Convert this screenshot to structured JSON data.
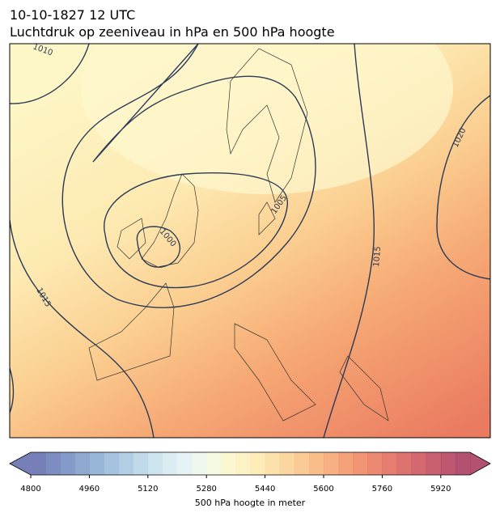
{
  "header": {
    "date": "10-10-1827 12 UTC",
    "title": "Luchtdruk op zeeniveau in hPa en 500 hPa hoogte"
  },
  "map": {
    "contour_labels": [
      "1010",
      "1000",
      "1005",
      "1015",
      "1015",
      "1020"
    ]
  },
  "colorbar": {
    "label": "500 hPa hoogte in meter",
    "lim": [
      4800,
      6000
    ],
    "ticks": [
      4800,
      4960,
      5120,
      5280,
      5440,
      5600,
      5760,
      5920
    ],
    "colors": [
      "#5f69ac",
      "#6779b6",
      "#6f89bf",
      "#7a99c8",
      "#86a9d0",
      "#95b8d8",
      "#a5c6df",
      "#b5d3e6",
      "#c5e0ec",
      "#d5eaf1",
      "#e2f1f3",
      "#ecf6ec",
      "#f4f8dc",
      "#f9f6c9",
      "#fcf0bb",
      "#fde7ab",
      "#fcdc9d",
      "#fbcf8f",
      "#f9c182",
      "#f8b276",
      "#f5a26b",
      "#f29263",
      "#ee835d",
      "#e87459",
      "#e06757",
      "#d65a56",
      "#cb4e57",
      "#c04458",
      "#b33b58",
      "#a63358"
    ]
  }
}
